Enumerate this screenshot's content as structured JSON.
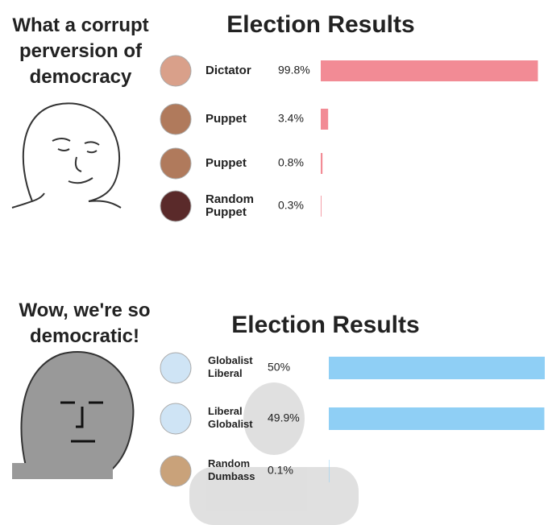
{
  "chart_data": [
    {
      "type": "hbar",
      "title": "Election Results",
      "annotation": "What a corrupt perversion of democracy",
      "categories": [
        "Dictator",
        "Puppet",
        "Puppet",
        "Random Puppet"
      ],
      "values": [
        99.8,
        3.4,
        0.8,
        0.3
      ],
      "value_labels": [
        "99.8%",
        "3.4%",
        "0.8%",
        "0.3%"
      ],
      "color": "#f28b95",
      "xlim": [
        0,
        100
      ]
    },
    {
      "type": "hbar",
      "title": "Election Results",
      "annotation": "Wow, we're so democratic!",
      "categories": [
        "Globalist Liberal",
        "Liberal Globalist",
        "Random Dumbass"
      ],
      "values": [
        50,
        49.9,
        0.1
      ],
      "value_labels": [
        "50%",
        "49.9%",
        "0.1%"
      ],
      "color": "#8fcff5",
      "xlim": [
        0,
        50
      ]
    }
  ]
}
